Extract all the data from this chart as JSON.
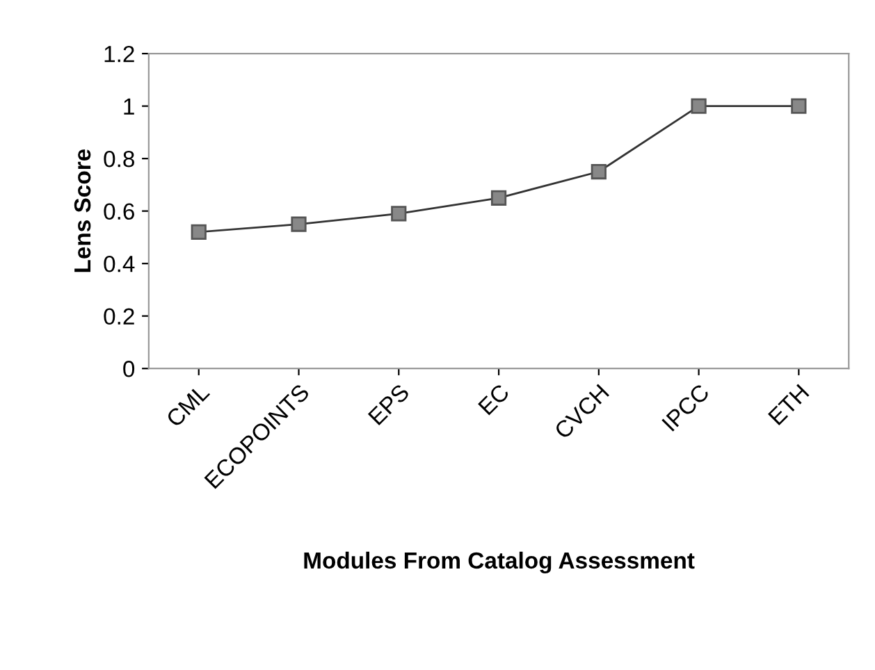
{
  "chart_data": {
    "type": "line",
    "xlabel": "Modules From Catalog Assessment",
    "ylabel": "Lens Score",
    "categories": [
      "CML",
      "ECOPOINTS",
      "EPS",
      "EC",
      "CVCH",
      "IPCC",
      "ETH"
    ],
    "series": [
      {
        "color": "#333333",
        "values": [
          0.52,
          0.55,
          0.59,
          0.65,
          0.75,
          1,
          1
        ]
      }
    ],
    "ylim": [
      0,
      1.2
    ],
    "yticks": [
      0,
      0.2,
      0.4,
      0.6,
      0.8,
      1,
      1.2
    ],
    "grid": false,
    "legend": false,
    "marker": "square",
    "line_style": "solid"
  }
}
